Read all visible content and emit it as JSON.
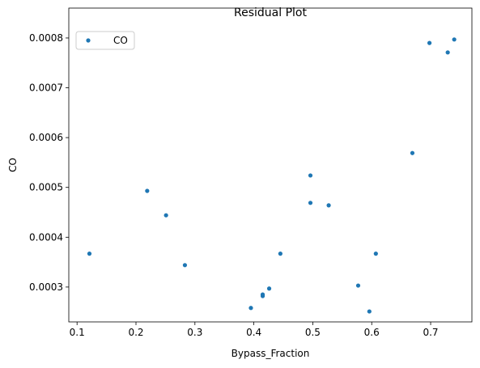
{
  "chart_data": {
    "type": "scatter",
    "title": "Residual Plot",
    "xlabel": "Bypass_Fraction",
    "ylabel": "CO",
    "series": [
      {
        "name": "CO",
        "color": "#1f77b4",
        "x": [
          0.121,
          0.219,
          0.251,
          0.283,
          0.395,
          0.415,
          0.415,
          0.426,
          0.445,
          0.496,
          0.496,
          0.527,
          0.577,
          0.596,
          0.607,
          0.669,
          0.698,
          0.729,
          0.74
        ],
        "values": [
          0.000367,
          0.000493,
          0.000444,
          0.000344,
          0.000258,
          0.000282,
          0.000285,
          0.000297,
          0.000367,
          0.000524,
          0.000469,
          0.000464,
          0.000303,
          0.000251,
          0.000367,
          0.000569,
          0.00079,
          0.000771,
          0.000797
        ]
      }
    ],
    "xlim": [
      0.086,
      0.77
    ],
    "ylim": [
      0.00023,
      0.00086
    ],
    "xticks": [
      0.1,
      0.2,
      0.3,
      0.4,
      0.5,
      0.6,
      0.7
    ],
    "yticks": [
      0.0003,
      0.0004,
      0.0005,
      0.0006,
      0.0007,
      0.0008
    ],
    "legend": "upper left"
  }
}
